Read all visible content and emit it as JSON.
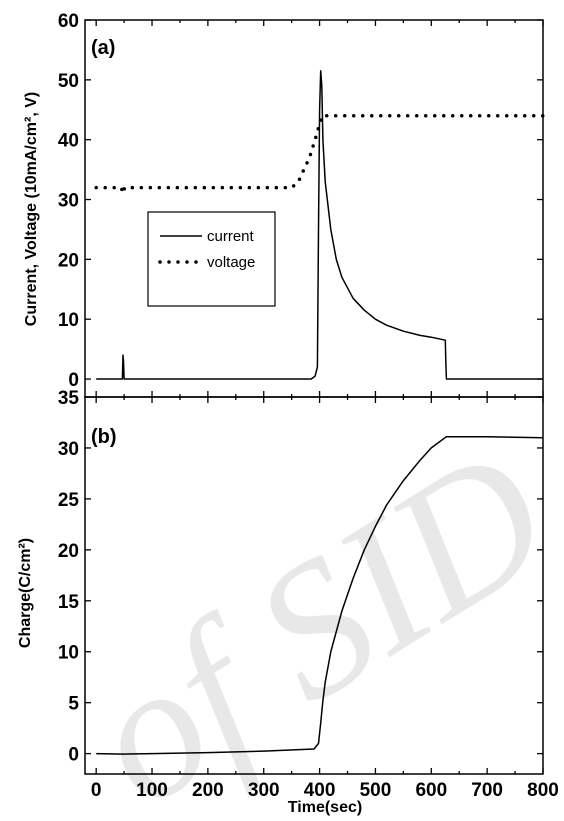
{
  "chart_data": [
    {
      "type": "line",
      "panel_label": "(a)",
      "title": "",
      "xlabel": "",
      "ylabel": "Current, Voltage (10mA/cm², V)",
      "xlim": [
        -20,
        800
      ],
      "ylim": [
        -3,
        60
      ],
      "yticks": [
        0,
        10,
        20,
        30,
        40,
        50,
        60
      ],
      "x_tick_labels_shown": false,
      "grid": false,
      "legend": {
        "placement": "middle-left"
      },
      "series": [
        {
          "name": "current",
          "style": "solid",
          "color": "#000000",
          "x": [
            0,
            47,
            48,
            49,
            50,
            51,
            100,
            200,
            300,
            385,
            392,
            396,
            398,
            400,
            402,
            404,
            406,
            410,
            415,
            420,
            430,
            440,
            460,
            480,
            500,
            520,
            550,
            580,
            600,
            625,
            626,
            627,
            628,
            700,
            800
          ],
          "y": [
            0,
            0,
            4,
            3,
            0,
            0,
            0,
            0,
            0,
            0,
            0.5,
            2,
            25,
            45,
            51.5,
            49,
            40,
            33,
            29,
            25,
            20,
            17,
            13.5,
            11.5,
            10,
            9,
            8,
            7.3,
            7,
            6.5,
            3,
            0,
            0,
            0,
            0
          ]
        },
        {
          "name": "voltage",
          "style": "dotted",
          "color": "#000000",
          "x": [
            0,
            45,
            48,
            51,
            100,
            200,
            300,
            350,
            362,
            372,
            382,
            392,
            398,
            405,
            420,
            500,
            600,
            700,
            800
          ],
          "y": [
            32,
            32,
            31,
            32,
            32,
            32,
            32,
            32,
            33,
            35,
            37,
            40,
            42,
            44,
            44,
            44,
            44,
            44,
            44
          ]
        }
      ]
    },
    {
      "type": "line",
      "panel_label": "(b)",
      "title": "",
      "xlabel": "Time(sec)",
      "ylabel": "Charge(C/cm²)",
      "xlim": [
        -20,
        800
      ],
      "ylim": [
        -2,
        35
      ],
      "xticks": [
        0,
        100,
        200,
        300,
        400,
        500,
        600,
        700,
        800
      ],
      "yticks": [
        0,
        5,
        10,
        15,
        20,
        25,
        30,
        35
      ],
      "grid": false,
      "series": [
        {
          "style": "solid",
          "color": "#000000",
          "x": [
            0,
            50,
            100,
            200,
            300,
            390,
            398,
            402,
            406,
            410,
            420,
            440,
            460,
            480,
            500,
            520,
            550,
            580,
            600,
            627,
            700,
            800
          ],
          "y": [
            0,
            -0.05,
            0,
            0.1,
            0.25,
            0.45,
            1,
            3,
            5.2,
            7,
            10,
            14,
            17.2,
            20,
            22.3,
            24.4,
            26.8,
            28.8,
            30,
            31.1,
            31.1,
            31
          ]
        }
      ]
    }
  ],
  "watermark": {
    "text": "of SID"
  }
}
